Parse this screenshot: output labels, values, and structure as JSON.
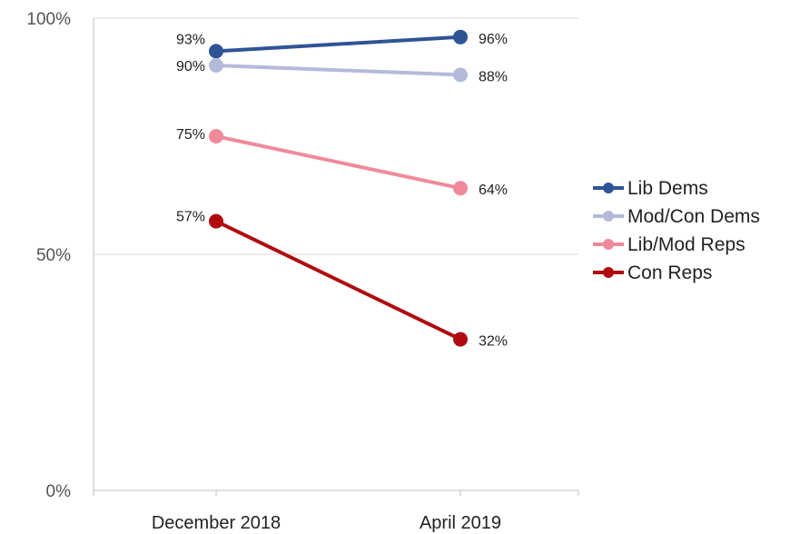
{
  "chart_data": {
    "type": "line",
    "categories": [
      "December 2018",
      "April 2019"
    ],
    "y_ticks": [
      "0%",
      "50%",
      "100%"
    ],
    "ylim": [
      0,
      100
    ],
    "grid": true,
    "legend_position": "right",
    "series": [
      {
        "name": "Lib Dems",
        "values": [
          93,
          96
        ],
        "labels": [
          "93%",
          "96%"
        ],
        "color": "#2E5496"
      },
      {
        "name": "Mod/Con Dems",
        "values": [
          90,
          88
        ],
        "labels": [
          "90%",
          "88%"
        ],
        "color": "#B4BAD9"
      },
      {
        "name": "Lib/Mod Reps",
        "values": [
          75,
          64
        ],
        "labels": [
          "75%",
          "64%"
        ],
        "color": "#F08A9B"
      },
      {
        "name": "Con Reps",
        "values": [
          57,
          32
        ],
        "labels": [
          "57%",
          "32%"
        ],
        "color": "#B00B0F"
      }
    ]
  }
}
